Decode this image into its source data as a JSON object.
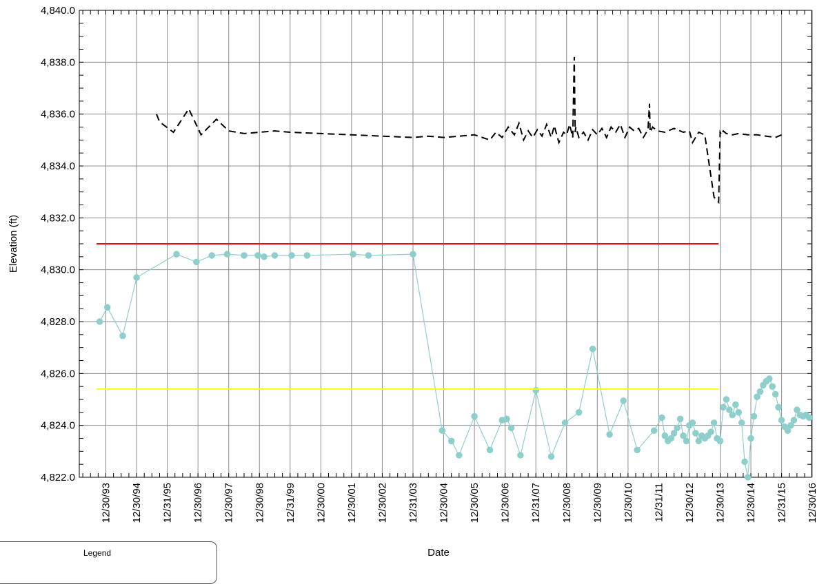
{
  "chart_data": {
    "type": "line",
    "xlabel": "Date",
    "ylabel": "Elevation (ft)",
    "ylim": [
      4822.0,
      4840.0
    ],
    "yticks": [
      "4,822.0",
      "4,824.0",
      "4,826.0",
      "4,828.0",
      "4,830.0",
      "4,832.0",
      "4,834.0",
      "4,836.0",
      "4,838.0",
      "4,840.0"
    ],
    "xticks": [
      "12/30/93",
      "12/30/94",
      "12/31/95",
      "12/30/96",
      "12/30/97",
      "12/30/98",
      "12/31/99",
      "12/30/00",
      "12/30/01",
      "12/30/02",
      "12/31/03",
      "12/30/04",
      "12/30/05",
      "12/30/06",
      "12/31/07",
      "12/30/08",
      "12/30/09",
      "12/30/10",
      "12/31/11",
      "12/30/12",
      "12/30/13",
      "12/30/14",
      "12/31/15",
      "12/30/16"
    ],
    "grid": true,
    "colors": {
      "series_measured": "#8ecfcc",
      "series_reference": "#000000",
      "line_upper": "#ff0000",
      "line_lower": "#ffff00",
      "grid": "#8c8c8c"
    },
    "series": [
      {
        "style": "dashed",
        "color": "#000000",
        "x": [
          1995.65,
          1995.75,
          1996.2,
          1996.7,
          1997.1,
          1997.6,
          1998.0,
          1998.5,
          1999.0,
          1999.5,
          2000.0,
          2001.0,
          2002.0,
          2003.0,
          2004.0,
          2004.5,
          2005.0,
          2005.5,
          2006.0,
          2006.5,
          2006.7,
          2006.9,
          2007.1,
          2007.3,
          2007.45,
          2007.6,
          2007.75,
          2007.9,
          2008.05,
          2008.2,
          2008.35,
          2008.5,
          2008.6,
          2008.75,
          2008.9,
          2009.0,
          2009.1,
          2009.2,
          2009.25,
          2009.28,
          2009.3,
          2009.4,
          2009.55,
          2009.7,
          2009.85,
          2010.0,
          2010.15,
          2010.3,
          2010.45,
          2010.6,
          2010.75,
          2010.9,
          2011.05,
          2011.2,
          2011.35,
          2011.5,
          2011.65,
          2011.7,
          2011.72,
          2011.8,
          2011.95,
          2012.2,
          2012.5,
          2012.8,
          2013.0,
          2013.1,
          2013.3,
          2013.5,
          2013.8,
          2013.95,
          2014.0,
          2014.05,
          2014.1,
          2014.2,
          2014.4,
          2014.6,
          2014.9,
          2015.2,
          2015.5,
          2015.8,
          2016.0
        ],
        "y": [
          4836.0,
          4835.7,
          4835.3,
          4836.2,
          4835.2,
          4835.8,
          4835.35,
          4835.25,
          4835.3,
          4835.35,
          4835.3,
          4835.25,
          4835.2,
          4835.15,
          4835.1,
          4835.15,
          4835.1,
          4835.15,
          4835.2,
          4835.0,
          4835.3,
          4835.1,
          4835.5,
          4835.2,
          4835.65,
          4835.0,
          4835.35,
          4835.1,
          4835.4,
          4835.15,
          4835.6,
          4835.1,
          4835.55,
          4834.9,
          4835.3,
          4835.2,
          4835.6,
          4835.1,
          4838.2,
          4835.3,
          4835.5,
          4835.1,
          4835.3,
          4835.0,
          4835.4,
          4835.2,
          4835.45,
          4835.1,
          4835.5,
          4835.3,
          4835.6,
          4835.1,
          4835.5,
          4835.35,
          4835.45,
          4835.1,
          4835.4,
          4836.4,
          4835.3,
          4835.5,
          4835.35,
          4835.3,
          4835.45,
          4835.3,
          4835.35,
          4834.9,
          4835.3,
          4835.2,
          4832.8,
          4832.6,
          4835.3,
          4835.2,
          4835.35,
          4835.25,
          4835.2,
          4835.25,
          4835.2,
          4835.2,
          4835.15,
          4835.1,
          4835.2
        ]
      },
      {
        "style": "markers+line",
        "color": "#8ecfcc",
        "x": [
          1993.8,
          1994.05,
          1994.55,
          1995.0,
          1996.3,
          1996.95,
          1997.45,
          1997.95,
          1998.5,
          1998.95,
          1999.15,
          1999.5,
          2000.05,
          2000.55,
          2002.05,
          2002.55,
          2004.0,
          2004.95,
          2005.25,
          2005.5,
          2006.0,
          2006.5,
          2006.9,
          2007.05,
          2007.2,
          2007.5,
          2008.0,
          2008.5,
          2008.95,
          2009.4,
          2009.85,
          2010.4,
          2010.85,
          2011.3,
          2011.85,
          2012.1,
          2012.2,
          2012.3,
          2012.4,
          2012.5,
          2012.6,
          2012.7,
          2012.8,
          2012.9,
          2013.0,
          2013.1,
          2013.2,
          2013.3,
          2013.4,
          2013.5,
          2013.6,
          2013.7,
          2013.8,
          2013.9,
          2014.0,
          2014.1,
          2014.2,
          2014.3,
          2014.4,
          2014.5,
          2014.6,
          2014.7,
          2014.8,
          2014.9,
          2015.0,
          2015.1,
          2015.2,
          2015.3,
          2015.4,
          2015.5,
          2015.6,
          2015.7,
          2015.8,
          2015.9,
          2016.0,
          2016.1,
          2016.2,
          2016.3,
          2016.4,
          2016.5,
          2016.6,
          2016.7,
          2016.8,
          2016.9
        ],
        "y": [
          4828.0,
          4828.55,
          4827.45,
          4829.7,
          4830.6,
          4830.3,
          4830.55,
          4830.6,
          4830.55,
          4830.55,
          4830.5,
          4830.55,
          4830.55,
          4830.55,
          4830.6,
          4830.55,
          4830.6,
          4823.8,
          4823.4,
          4822.85,
          4824.35,
          4823.05,
          4824.2,
          4824.25,
          4823.9,
          4822.85,
          4825.35,
          4822.8,
          4824.1,
          4824.5,
          4826.95,
          4823.65,
          4824.95,
          4823.05,
          4823.8,
          4824.3,
          4823.6,
          4823.4,
          4823.5,
          4823.7,
          4823.9,
          4824.25,
          4823.6,
          4823.4,
          4824.0,
          4824.1,
          4823.7,
          4823.4,
          4823.6,
          4823.5,
          4823.6,
          4823.75,
          4824.1,
          4823.5,
          4823.4,
          4824.7,
          4825.0,
          4824.6,
          4824.4,
          4824.8,
          4824.5,
          4824.1,
          4822.6,
          4822.0,
          4823.5,
          4824.35,
          4825.1,
          4825.3,
          4825.55,
          4825.7,
          4825.8,
          4825.5,
          4825.2,
          4824.7,
          4824.2,
          4823.95,
          4823.8,
          4824.0,
          4824.2,
          4824.6,
          4824.4,
          4824.35,
          4824.4,
          4824.3
        ]
      },
      {
        "style": "solid",
        "color": "#ff0000",
        "x": [
          1993.7,
          2013.95
        ],
        "y": [
          4831.0,
          4831.0
        ]
      },
      {
        "style": "solid",
        "color": "#ffff00",
        "x": [
          1993.7,
          2013.95
        ],
        "y": [
          4825.4,
          4825.4
        ]
      }
    ],
    "legend": {
      "title": "Legend",
      "placement": "bottom-left"
    }
  }
}
